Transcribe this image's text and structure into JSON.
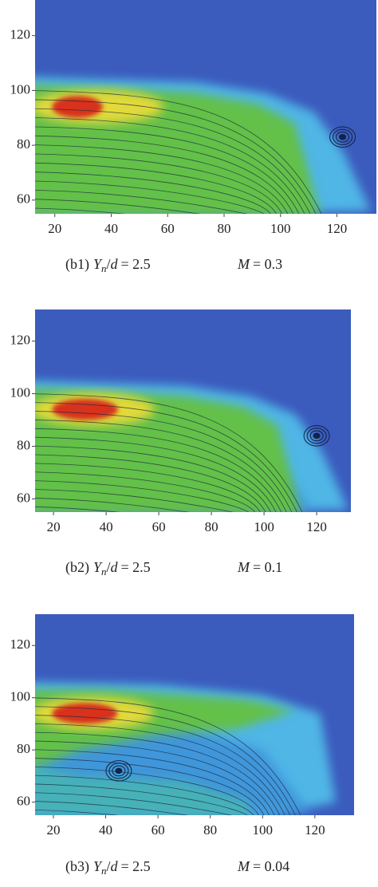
{
  "chart_data": [
    {
      "type": "contour",
      "xlim": [
        13,
        134
      ],
      "ylim": [
        55,
        133
      ],
      "xticks": [
        20,
        40,
        60,
        80,
        100,
        120
      ],
      "yticks": [
        60,
        80,
        100,
        120
      ],
      "caption": {
        "label": "(b1)",
        "var": "Y",
        "sub": "n",
        "div": "/",
        "d": "d",
        "eq": "= 2.5",
        "m": "M",
        "m_eq": "= 0.3"
      }
    },
    {
      "type": "contour",
      "xlim": [
        13,
        133
      ],
      "ylim": [
        55,
        132
      ],
      "xticks": [
        20,
        40,
        60,
        80,
        100,
        120
      ],
      "yticks": [
        60,
        80,
        100,
        120
      ],
      "caption": {
        "label": "(b2)",
        "var": "Y",
        "sub": "n",
        "div": "/",
        "d": "d",
        "eq": "= 2.5",
        "m": "M",
        "m_eq": "= 0.1"
      }
    },
    {
      "type": "contour",
      "xlim": [
        13,
        135
      ],
      "ylim": [
        55,
        132
      ],
      "xticks": [
        20,
        40,
        60,
        80,
        100,
        120
      ],
      "yticks": [
        60,
        80,
        100,
        120
      ],
      "caption": {
        "label": "(b3)",
        "var": "Y",
        "sub": "n",
        "div": "/",
        "d": "d",
        "eq": "= 2.5",
        "m": "M",
        "m_eq": "= 0.04"
      }
    }
  ]
}
